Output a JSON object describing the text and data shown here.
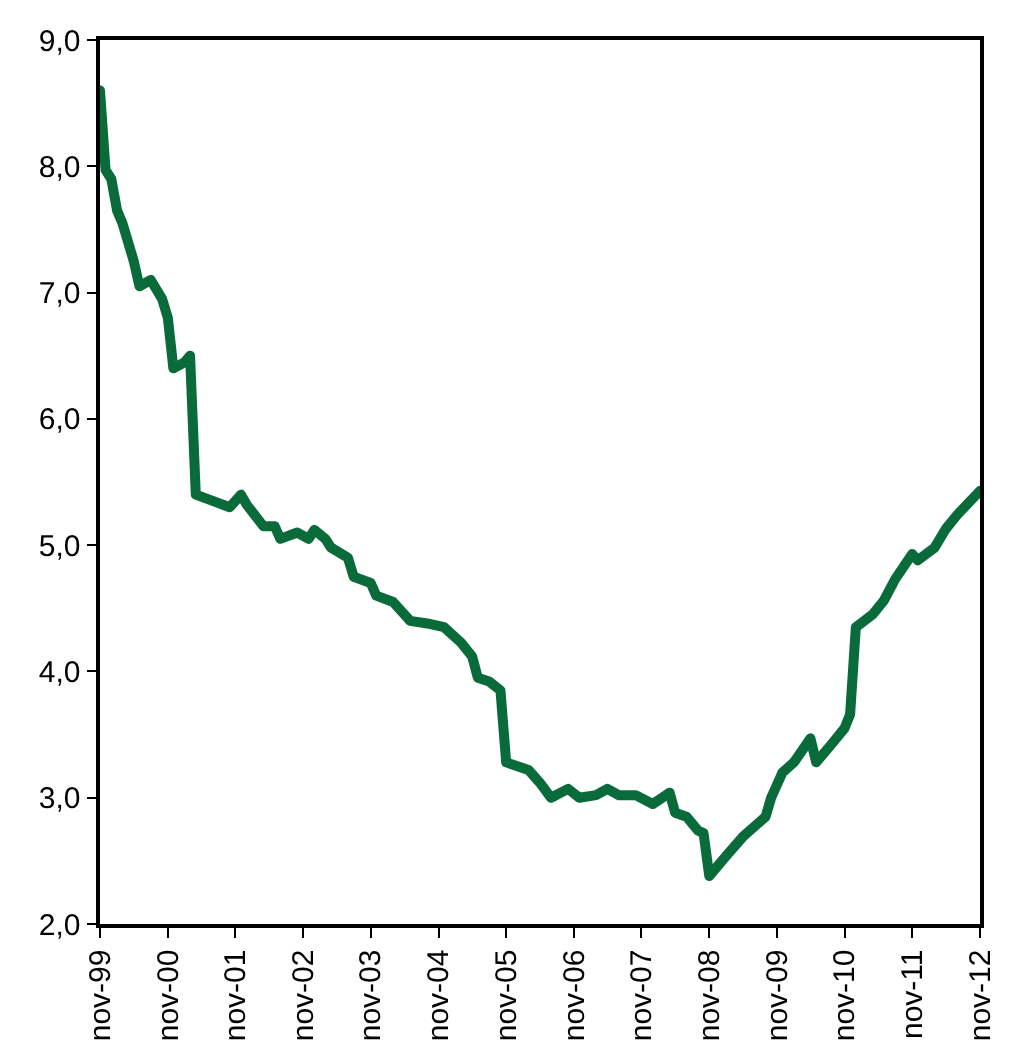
{
  "chart_data": {
    "type": "line",
    "x": [
      "1999-11",
      "1999-12",
      "2000-01",
      "2000-02",
      "2000-03",
      "2000-05",
      "2000-06",
      "2000-08",
      "2000-10",
      "2000-11",
      "2000-12",
      "2001-02",
      "2001-03",
      "2001-04",
      "2001-07",
      "2001-10",
      "2001-12",
      "2002-01",
      "2002-04",
      "2002-06",
      "2002-07",
      "2002-10",
      "2002-12",
      "2003-01",
      "2003-03",
      "2003-04",
      "2003-07",
      "2003-08",
      "2003-11",
      "2003-12",
      "2004-03",
      "2004-06",
      "2004-09",
      "2004-12",
      "2005-03",
      "2005-05",
      "2005-06",
      "2005-08",
      "2005-10",
      "2005-11",
      "2006-03",
      "2006-05",
      "2006-07",
      "2006-10",
      "2006-12",
      "2007-03",
      "2007-05",
      "2007-07",
      "2007-10",
      "2008-01",
      "2008-02",
      "2008-04",
      "2008-05",
      "2008-07",
      "2008-09",
      "2008-10",
      "2008-11",
      "2009-02",
      "2009-05",
      "2009-09",
      "2009-10",
      "2009-12",
      "2010-02",
      "2010-05",
      "2010-06",
      "2010-09",
      "2010-11",
      "2010-12",
      "2011-01",
      "2011-04",
      "2011-06",
      "2011-08",
      "2011-11",
      "2011-12",
      "2012-03",
      "2012-05",
      "2012-07",
      "2012-11"
    ],
    "series": [
      {
        "color": "#0a6b3a",
        "values": [
          8.6,
          7.97,
          7.9,
          7.65,
          7.55,
          7.25,
          7.05,
          7.1,
          6.95,
          6.8,
          6.4,
          6.45,
          6.5,
          5.4,
          5.35,
          5.3,
          5.4,
          5.32,
          5.15,
          5.15,
          5.05,
          5.1,
          5.05,
          5.12,
          5.05,
          4.98,
          4.9,
          4.75,
          4.7,
          4.6,
          4.55,
          4.4,
          4.38,
          4.35,
          4.23,
          4.12,
          3.95,
          3.92,
          3.85,
          3.28,
          3.22,
          3.12,
          3.0,
          3.07,
          3.0,
          3.02,
          3.07,
          3.02,
          3.02,
          2.95,
          2.98,
          3.04,
          2.88,
          2.85,
          2.74,
          2.72,
          2.38,
          2.54,
          2.69,
          2.85,
          3.0,
          3.2,
          3.28,
          3.47,
          3.28,
          3.44,
          3.55,
          3.66,
          4.35,
          4.45,
          4.56,
          4.73,
          4.93,
          4.88,
          4.98,
          5.13,
          5.24,
          5.43
        ]
      }
    ],
    "xlim": [
      "1999-11",
      "2012-11"
    ],
    "xticks": [
      {
        "value": "1999-11",
        "label": "nov-99"
      },
      {
        "value": "2000-11",
        "label": "nov-00"
      },
      {
        "value": "2001-11",
        "label": "nov-01"
      },
      {
        "value": "2002-11",
        "label": "nov-02"
      },
      {
        "value": "2003-11",
        "label": "nov-03"
      },
      {
        "value": "2004-11",
        "label": "nov-04"
      },
      {
        "value": "2005-11",
        "label": "nov-05"
      },
      {
        "value": "2006-11",
        "label": "nov-06"
      },
      {
        "value": "2007-11",
        "label": "nov-07"
      },
      {
        "value": "2008-11",
        "label": "nov-08"
      },
      {
        "value": "2009-11",
        "label": "nov-09"
      },
      {
        "value": "2010-11",
        "label": "nov-10"
      },
      {
        "value": "2011-11",
        "label": "nov-11"
      },
      {
        "value": "2012-11",
        "label": "nov-12"
      }
    ],
    "ylim": [
      2.0,
      9.0
    ],
    "yticks": [
      {
        "value": 2,
        "label": "2,0"
      },
      {
        "value": 3,
        "label": "3,0"
      },
      {
        "value": 4,
        "label": "4,0"
      },
      {
        "value": 5,
        "label": "5,0"
      },
      {
        "value": 6,
        "label": "6,0"
      },
      {
        "value": 7,
        "label": "7,0"
      },
      {
        "value": 8,
        "label": "8,0"
      },
      {
        "value": 9,
        "label": "9,0"
      }
    ],
    "marker": "none",
    "line_style": "solid"
  }
}
